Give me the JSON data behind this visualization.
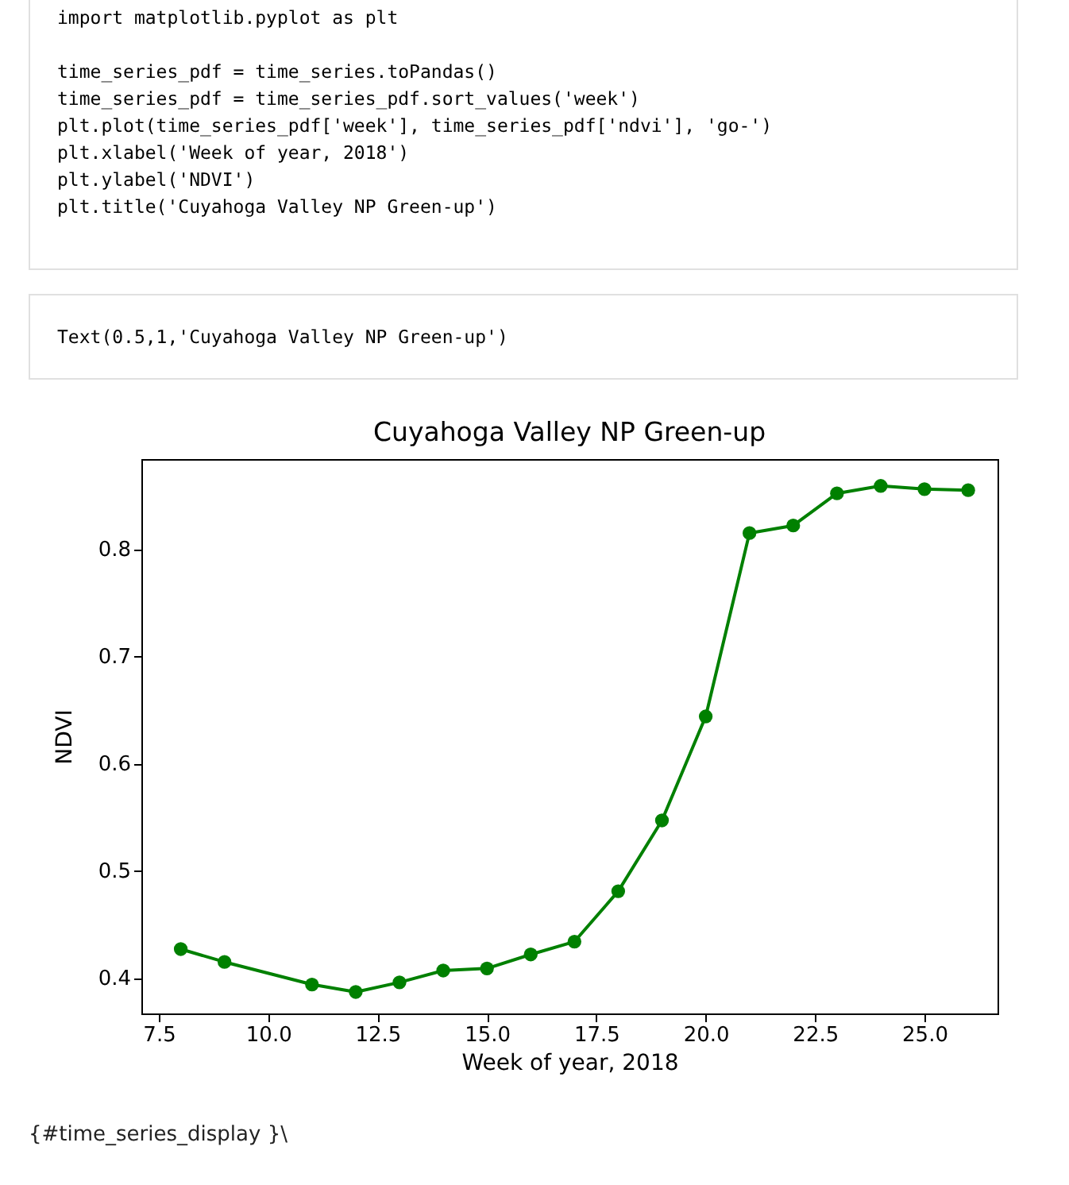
{
  "chart_data": {
    "type": "line",
    "title": "Cuyahoga Valley NP Green-up",
    "xlabel": "Week of year, 2018",
    "ylabel": "NDVI",
    "annotations": [
      "import matplotlib.pyplot as plt\n\ntime_series_pdf = time_series.toPandas()\ntime_series_pdf = time_series_pdf.sort_values('week')\nplt.plot(time_series_pdf['week'], time_series_pdf['ndvi'], 'go-')\nplt.xlabel('Week of year, 2018')\nplt.ylabel('NDVI')\nplt.title('Cuyahoga Valley NP Green-up')",
      "Text(0.5,1,'Cuyahoga Valley NP Green-up')",
      "{#time_series_display }\\"
    ],
    "x": [
      8,
      9,
      11,
      12,
      13,
      14,
      15,
      16,
      17,
      18,
      19,
      20,
      21,
      22,
      23,
      24,
      25,
      26
    ],
    "series": [
      {
        "color": "#008000",
        "values": [
          0.427,
          0.415,
          0.394,
          0.387,
          0.396,
          0.407,
          0.409,
          0.422,
          0.434,
          0.481,
          0.547,
          0.644,
          0.815,
          0.822,
          0.852,
          0.859,
          0.856,
          0.855
        ]
      }
    ],
    "xlim": [
      7.1,
      26.67
    ],
    "ylim": [
      0.367,
      0.884
    ],
    "xticks": [
      7.5,
      {
        "value": 10,
        "label": "10.0"
      },
      12.5,
      {
        "value": 15,
        "label": "15.0"
      },
      17.5,
      {
        "value": 20,
        "label": "20.0"
      },
      22.5,
      {
        "value": 25,
        "label": "25.0"
      }
    ],
    "yticks": [
      0.4,
      0.5,
      0.6,
      0.7,
      0.8
    ],
    "marker": "circle",
    "line_style": "solid",
    "grid": false,
    "legend": false
  }
}
